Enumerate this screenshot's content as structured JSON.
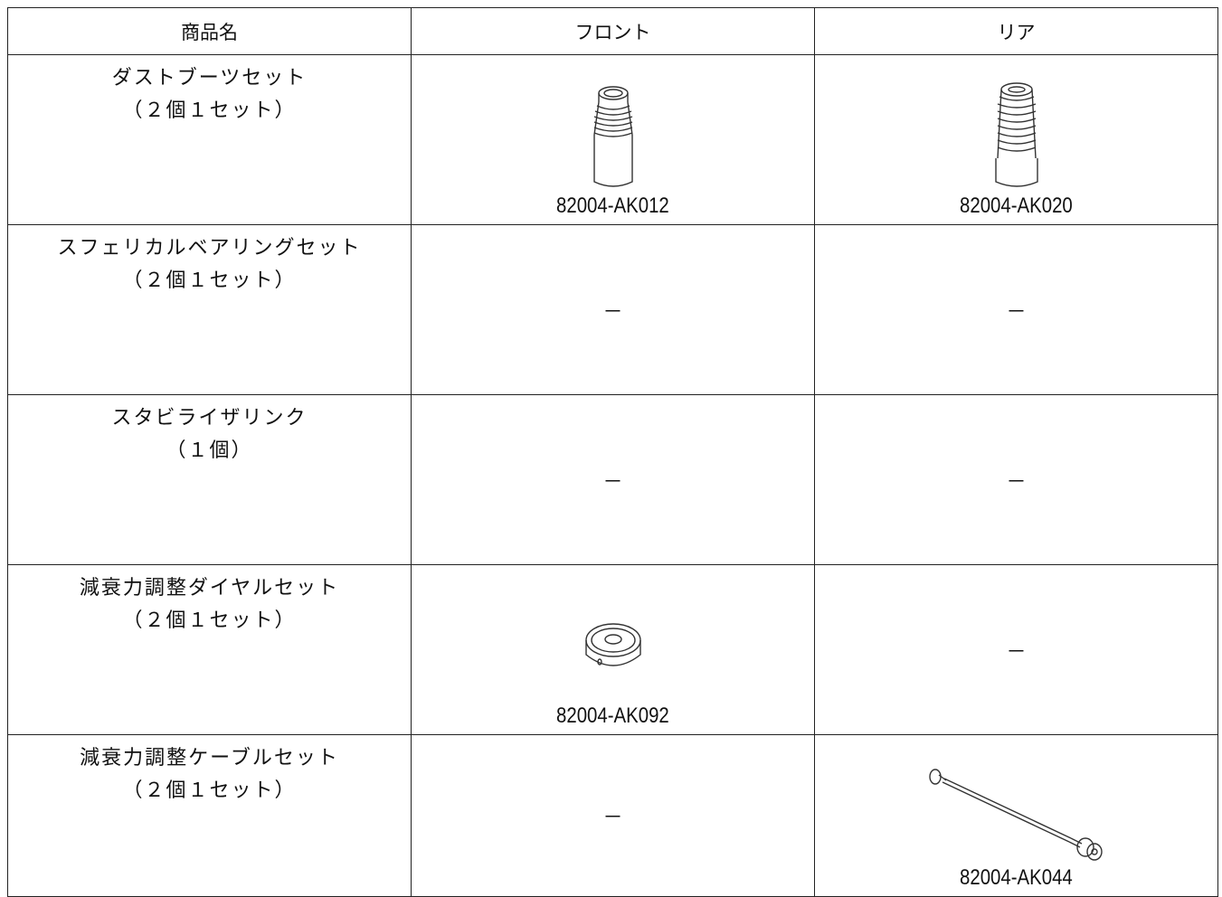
{
  "table": {
    "header": [
      "商品名",
      "フロント",
      "リア"
    ],
    "rows": [
      {
        "name": [
          "ダストブーツセット",
          "（２個１セット）"
        ],
        "front": "82004-AK012",
        "rear": "82004-AK020"
      },
      {
        "name": [
          "スフェリカルベアリングセット",
          "（２個１セット）"
        ],
        "front": "－",
        "rear": "－"
      },
      {
        "name": [
          "スタビライザリンク",
          "（１個）"
        ],
        "front": "－",
        "rear": "－"
      },
      {
        "name": [
          "減衰力調整ダイヤルセット",
          "（２個１セット）"
        ],
        "front": "82004-AK092",
        "rear": "－"
      },
      {
        "name": [
          "減衰力調整ケーブルセット",
          "（２個１セット）"
        ],
        "front": "－",
        "rear": "82004-AK044"
      }
    ]
  }
}
